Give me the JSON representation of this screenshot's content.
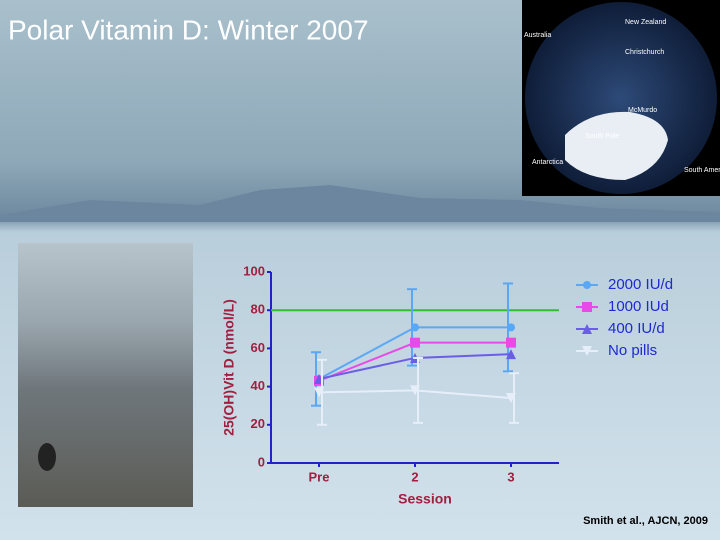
{
  "slide": {
    "title": "Polar Vitamin D: Winter 2007",
    "citation": "Smith et al., AJCN, 2009"
  },
  "map_labels": [
    "New Zealand",
    "Australia",
    "Christchurch",
    "McMurdo",
    "South Pole",
    "Antarctica",
    "South America"
  ],
  "chart_data": {
    "type": "line",
    "xlabel": "Session",
    "ylabel": "25(OH)Vit D (nmol/L)",
    "categories": [
      "Pre",
      "2",
      "3"
    ],
    "ylim": [
      0,
      100
    ],
    "yticks": [
      0,
      20,
      40,
      60,
      80,
      100
    ],
    "hline": {
      "value": 80,
      "color": "#2ec02e"
    },
    "series": [
      {
        "name": "2000 IU/d",
        "color": "#5aa8f5",
        "marker": "circle",
        "values": [
          44,
          71,
          71
        ],
        "errors": [
          14,
          20,
          23
        ]
      },
      {
        "name": "1000 IUd",
        "color": "#e84ae8",
        "marker": "square",
        "values": [
          43,
          63,
          63
        ]
      },
      {
        "name": "400 IU/d",
        "color": "#6a5ee6",
        "marker": "triangle",
        "values": [
          44,
          55,
          57
        ]
      },
      {
        "name": "No pills",
        "color": "#e6eefa",
        "marker": "triangle-down",
        "values": [
          37,
          38,
          34
        ],
        "errors": [
          17,
          17,
          13
        ]
      }
    ]
  }
}
